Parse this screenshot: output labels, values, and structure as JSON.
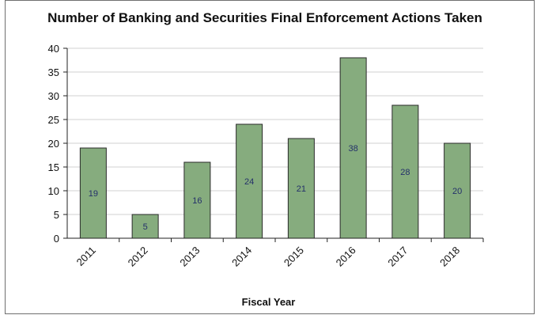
{
  "chart_data": {
    "type": "bar",
    "title": "Number of Banking and Securities Final Enforcement Actions Taken",
    "xlabel": "Fiscal Year",
    "ylabel": "",
    "categories": [
      "2011",
      "2012",
      "2013",
      "2014",
      "2015",
      "2016",
      "2017",
      "2018"
    ],
    "values": [
      19,
      5,
      16,
      24,
      21,
      38,
      28,
      20
    ],
    "data_labels": [
      "19",
      "5",
      "16",
      "24",
      "21",
      "38",
      "28",
      "20"
    ],
    "ylim": [
      0,
      40
    ],
    "yticks": [
      0,
      5,
      10,
      15,
      20,
      25,
      30,
      35,
      40
    ],
    "grid": true,
    "legend": "none",
    "colors": {
      "bar_fill": "#86ac7e",
      "bar_stroke": "#2a2a2a",
      "data_label": "#24306a",
      "grid": "#d0d0d0",
      "axis": "#222222"
    }
  }
}
